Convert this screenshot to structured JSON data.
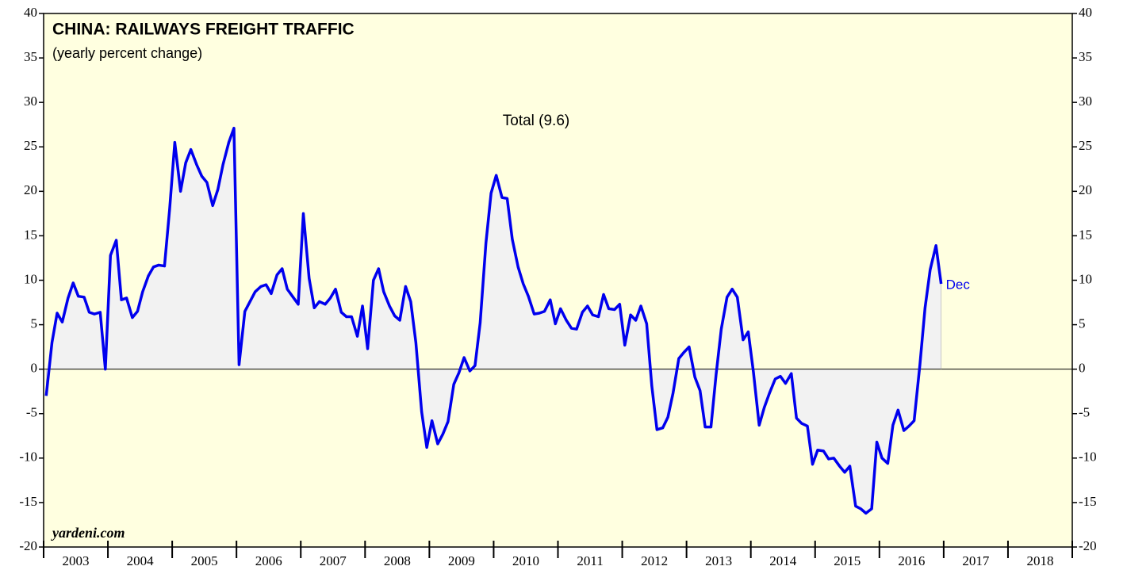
{
  "chart_data": {
    "type": "line",
    "title": "CHINA: RAILWAYS FREIGHT TRAFFIC",
    "subtitle": "(yearly percent change)",
    "annotations": {
      "series_label": "Total (9.6)",
      "end_label": "Dec",
      "source": "yardeni.com"
    },
    "xlim": [
      2003,
      2019
    ],
    "xticks": [
      2003,
      2004,
      2005,
      2006,
      2007,
      2008,
      2009,
      2010,
      2011,
      2012,
      2013,
      2014,
      2015,
      2016,
      2017,
      2018,
      2019
    ],
    "xtick_labels": [
      {
        "value": 2003.5,
        "label": "2003"
      },
      {
        "value": 2004.5,
        "label": "2004"
      },
      {
        "value": 2005.5,
        "label": "2005"
      },
      {
        "value": 2006.5,
        "label": "2006"
      },
      {
        "value": 2007.5,
        "label": "2007"
      },
      {
        "value": 2008.5,
        "label": "2008"
      },
      {
        "value": 2009.5,
        "label": "2009"
      },
      {
        "value": 2010.5,
        "label": "2010"
      },
      {
        "value": 2011.5,
        "label": "2011"
      },
      {
        "value": 2012.5,
        "label": "2012"
      },
      {
        "value": 2013.5,
        "label": "2013"
      },
      {
        "value": 2014.5,
        "label": "2014"
      },
      {
        "value": 2015.5,
        "label": "2015"
      },
      {
        "value": 2016.5,
        "label": "2016"
      },
      {
        "value": 2017.5,
        "label": "2017"
      },
      {
        "value": 2018.5,
        "label": "2018"
      }
    ],
    "ylim": [
      -20,
      40
    ],
    "yticks": [
      -20,
      -15,
      -10,
      -5,
      0,
      5,
      10,
      15,
      20,
      25,
      30,
      35,
      40
    ],
    "y2lim": [
      -20,
      40
    ],
    "y2ticks": [
      -20,
      -15,
      -10,
      -5,
      0,
      5,
      10,
      15,
      20,
      25,
      30,
      35,
      40
    ],
    "x": [
      2003.04,
      2003.13,
      2003.21,
      2003.29,
      2003.38,
      2003.46,
      2003.54,
      2003.63,
      2003.71,
      2003.79,
      2003.88,
      2003.96,
      2004.04,
      2004.13,
      2004.21,
      2004.29,
      2004.38,
      2004.46,
      2004.54,
      2004.63,
      2004.71,
      2004.79,
      2004.88,
      2004.96,
      2005.04,
      2005.13,
      2005.21,
      2005.29,
      2005.38,
      2005.46,
      2005.54,
      2005.63,
      2005.71,
      2005.79,
      2005.88,
      2005.96,
      2006.04,
      2006.13,
      2006.21,
      2006.29,
      2006.38,
      2006.46,
      2006.54,
      2006.63,
      2006.71,
      2006.79,
      2006.88,
      2006.96,
      2007.04,
      2007.13,
      2007.21,
      2007.29,
      2007.38,
      2007.46,
      2007.54,
      2007.63,
      2007.71,
      2007.79,
      2007.88,
      2007.96,
      2008.04,
      2008.13,
      2008.21,
      2008.29,
      2008.38,
      2008.46,
      2008.54,
      2008.63,
      2008.71,
      2008.79,
      2008.88,
      2008.96,
      2009.04,
      2009.13,
      2009.21,
      2009.29,
      2009.38,
      2009.46,
      2009.54,
      2009.63,
      2009.71,
      2009.79,
      2009.88,
      2009.96,
      2010.04,
      2010.13,
      2010.21,
      2010.29,
      2010.38,
      2010.46,
      2010.54,
      2010.63,
      2010.71,
      2010.79,
      2010.88,
      2010.96,
      2011.04,
      2011.13,
      2011.21,
      2011.29,
      2011.38,
      2011.46,
      2011.54,
      2011.63,
      2011.71,
      2011.79,
      2011.88,
      2011.96,
      2012.04,
      2012.13,
      2012.21,
      2012.29,
      2012.38,
      2012.46,
      2012.54,
      2012.63,
      2012.71,
      2012.79,
      2012.88,
      2012.96,
      2013.04,
      2013.13,
      2013.21,
      2013.29,
      2013.38,
      2013.46,
      2013.54,
      2013.63,
      2013.71,
      2013.79,
      2013.88,
      2013.96,
      2014.04,
      2014.13,
      2014.21,
      2014.29,
      2014.38,
      2014.46,
      2014.54,
      2014.63,
      2014.71,
      2014.79,
      2014.88,
      2014.96,
      2015.04,
      2015.13,
      2015.21,
      2015.29,
      2015.38,
      2015.46,
      2015.54,
      2015.63,
      2015.71,
      2015.79,
      2015.88,
      2015.96,
      2016.04,
      2016.13,
      2016.21,
      2016.29,
      2016.38,
      2016.46,
      2016.54,
      2016.63,
      2016.71,
      2016.79,
      2016.88,
      2016.96
    ],
    "series": [
      {
        "name": "Total",
        "color": "#0000ee",
        "fill": "#f2f2f2",
        "values": [
          -3,
          3,
          6.3,
          5.3,
          8,
          9.7,
          8.2,
          8.1,
          6.4,
          6.2,
          6.4,
          0,
          12.8,
          14.5,
          7.8,
          8,
          5.8,
          6.5,
          8.7,
          10.5,
          11.5,
          11.7,
          11.6,
          18,
          25.5,
          20,
          23.2,
          24.7,
          23,
          21.7,
          21,
          18.4,
          20.2,
          23,
          25.5,
          27.1,
          0.5,
          6.5,
          7.6,
          8.7,
          9.3,
          9.5,
          8.5,
          10.6,
          11.3,
          9,
          8.1,
          7.3,
          17.5,
          10.2,
          6.9,
          7.6,
          7.3,
          8,
          9,
          6.4,
          5.9,
          5.9,
          3.7,
          7.1,
          2.3,
          10,
          11.3,
          8.7,
          7.1,
          6,
          5.5,
          9.3,
          7.6,
          3,
          -4.8,
          -8.8,
          -5.8,
          -8.4,
          -7.3,
          -5.9,
          -1.7,
          -0.4,
          1.3,
          -0.2,
          0.4,
          5.2,
          14.2,
          19.8,
          21.8,
          19.3,
          19.2,
          14.6,
          11.5,
          9.6,
          8.2,
          6.2,
          6.3,
          6.5,
          7.8,
          5.1,
          6.8,
          5.5,
          4.6,
          4.5,
          6.4,
          7.1,
          6.1,
          5.9,
          8.4,
          6.8,
          6.7,
          7.3,
          2.7,
          6.1,
          5.5,
          7.1,
          5.1,
          -1.9,
          -6.8,
          -6.6,
          -5.4,
          -2.7,
          1.2,
          1.9,
          2.5,
          -0.9,
          -2.4,
          -6.5,
          -6.5,
          -0.6,
          4.5,
          8.1,
          9,
          8.1,
          3.3,
          4.2,
          -0.3,
          -6.3,
          -4.3,
          -2.7,
          -1.1,
          -0.8,
          -1.6,
          -0.5,
          -5.5,
          -6.1,
          -6.4,
          -10.7,
          -9.1,
          -9.2,
          -10.1,
          -10,
          -10.9,
          -11.6,
          -10.9,
          -15.4,
          -15.7,
          -16.2,
          -15.7,
          -8.2,
          -10,
          -10.6,
          -6.3,
          -4.6,
          -6.9,
          -6.4,
          -5.8,
          0.5,
          6.9,
          11.2,
          13.9,
          9.6
        ]
      }
    ],
    "background": "#ffffe0"
  }
}
